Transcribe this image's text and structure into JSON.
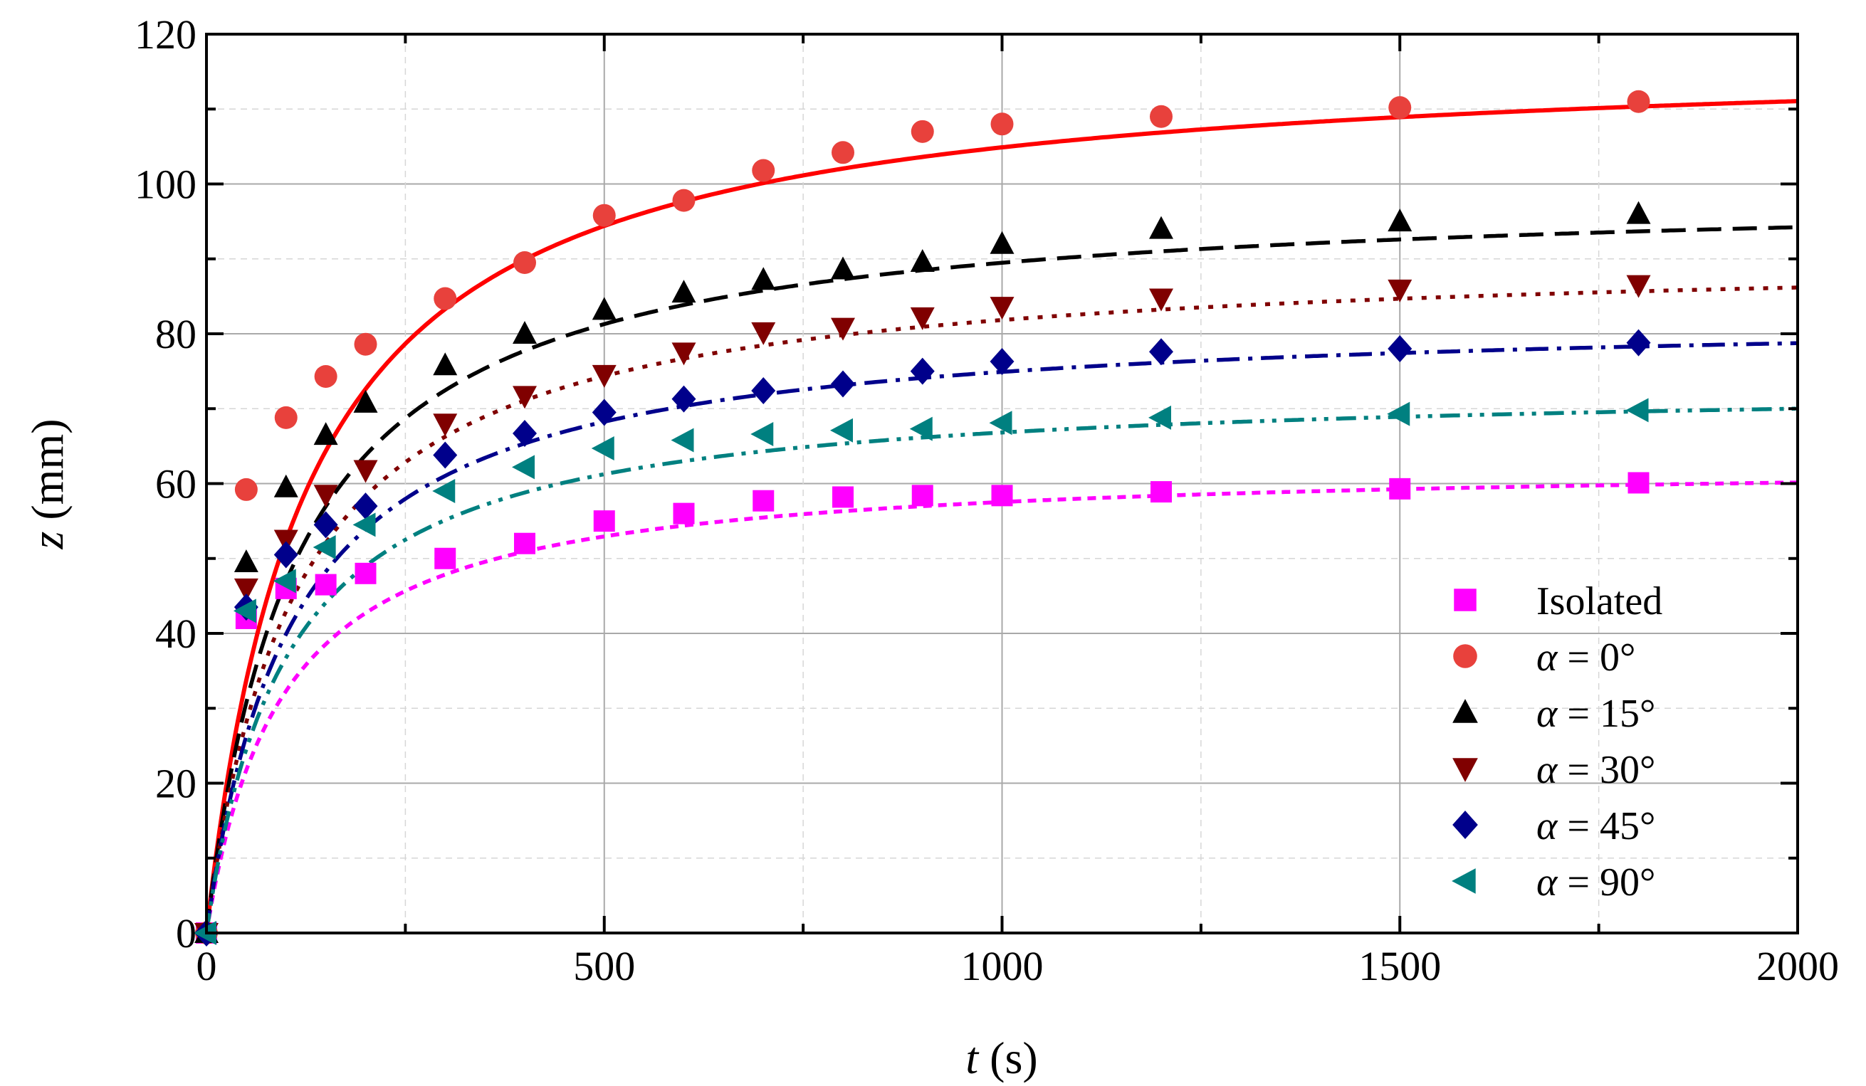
{
  "chart_data": {
    "type": "scatter",
    "title": "",
    "xlabel": {
      "var": "t",
      "unit": " (s)"
    },
    "ylabel": {
      "var": "z",
      "unit": " (mm)"
    },
    "xlim": [
      0,
      2000
    ],
    "ylim": [
      0,
      120
    ],
    "xticks": [
      0,
      500,
      1000,
      1500,
      2000
    ],
    "yticks": [
      0,
      20,
      40,
      60,
      80,
      100,
      120
    ],
    "x_minor_ticks": [
      250,
      750,
      1250,
      1750
    ],
    "y_minor_ticks": [
      10,
      30,
      50,
      70,
      90,
      110
    ],
    "grid": true,
    "legend_position": "bottom-right",
    "series": [
      {
        "name": "Isolated",
        "greek": "",
        "eq": "",
        "marker": "square",
        "color": "#ff00ff",
        "line_style": "dotted-dense",
        "x": [
          0,
          50,
          100,
          150,
          200,
          300,
          400,
          500,
          600,
          700,
          800,
          900,
          1000,
          1200,
          1500,
          1800
        ],
        "y": [
          0,
          42,
          46,
          46.5,
          48,
          50,
          52,
          55,
          56,
          57.7,
          58.2,
          58.4,
          58.4,
          58.9,
          59.3,
          60.1
        ],
        "fit": {
          "zmax": 63,
          "tau": 95
        }
      },
      {
        "name": "0°",
        "greek": "α",
        "eq": " =   ",
        "marker": "circle",
        "color": "#e8413c",
        "line_style": "solid",
        "line_color": "#ff0000",
        "x": [
          0,
          50,
          100,
          150,
          200,
          300,
          400,
          500,
          600,
          700,
          800,
          900,
          1000,
          1200,
          1500,
          1800
        ],
        "y": [
          0,
          59.2,
          68.8,
          74.3,
          78.6,
          84.7,
          89.5,
          95.8,
          97.8,
          101.8,
          104.2,
          107,
          108,
          109,
          110.2,
          111
        ],
        "fit": {
          "zmax": 118,
          "tau": 125
        }
      },
      {
        "name": "15°",
        "greek": "α",
        "eq": " = ",
        "marker": "triangle-up",
        "color": "#000000",
        "line_style": "dashed",
        "x": [
          0,
          50,
          100,
          150,
          200,
          300,
          400,
          500,
          600,
          700,
          800,
          900,
          1000,
          1200,
          1500,
          1800
        ],
        "y": [
          0,
          49.5,
          59.5,
          66.5,
          70.8,
          75.8,
          80,
          83.2,
          85.5,
          87.2,
          88.6,
          89.6,
          92,
          94,
          95,
          96
        ],
        "fit": {
          "zmax": 99.5,
          "tau": 112
        }
      },
      {
        "name": "30°",
        "greek": "α",
        "eq": " = ",
        "marker": "triangle-down",
        "color": "#800000",
        "line_style": "dotted",
        "x": [
          0,
          50,
          100,
          150,
          200,
          300,
          400,
          500,
          600,
          700,
          800,
          900,
          1000,
          1200,
          1500,
          1800
        ],
        "y": [
          0,
          46,
          52.5,
          58.5,
          61.8,
          68,
          71.7,
          74.5,
          77.5,
          80.2,
          80.8,
          82.2,
          83.6,
          84.7,
          85.9,
          86.5
        ],
        "fit": {
          "zmax": 91,
          "tau": 112
        }
      },
      {
        "name": "45°",
        "greek": "α",
        "eq": " = ",
        "marker": "diamond",
        "color": "#00008b",
        "line_style": "dash-dot",
        "x": [
          0,
          50,
          100,
          150,
          200,
          300,
          400,
          500,
          600,
          700,
          800,
          900,
          1000,
          1200,
          1500,
          1800
        ],
        "y": [
          0,
          43.5,
          50.5,
          54.5,
          57,
          63.8,
          66.7,
          69.5,
          71.3,
          72.4,
          73.3,
          75,
          76.3,
          77.6,
          78,
          78.8
        ],
        "fit": {
          "zmax": 83,
          "tau": 108
        }
      },
      {
        "name": "90°",
        "greek": "α",
        "eq": " = ",
        "marker": "triangle-left",
        "color": "#008080",
        "line_style": "dash-dot-dot",
        "x": [
          0,
          50,
          100,
          150,
          200,
          300,
          400,
          500,
          600,
          700,
          800,
          900,
          1000,
          1200,
          1500,
          1800
        ],
        "y": [
          0,
          43,
          47,
          51.5,
          54.5,
          59,
          62.2,
          64.7,
          65.8,
          66.6,
          67.1,
          67.3,
          68.1,
          68.8,
          69.3,
          69.8
        ],
        "fit": {
          "zmax": 73.5,
          "tau": 100
        }
      }
    ]
  }
}
